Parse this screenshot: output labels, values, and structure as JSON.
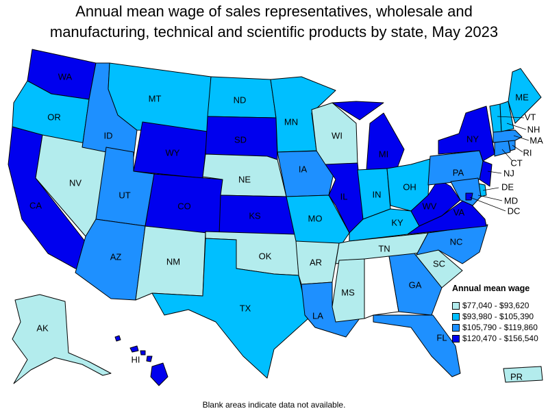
{
  "title_lines": [
    "Annual mean wage of sales representatives, wholesale and",
    "manufacturing, technical and scientific products by state, May 2023"
  ],
  "legend": {
    "title": "Annual mean wage",
    "bins": [
      {
        "label": "$77,040 - $93,620",
        "color": "#b3eced"
      },
      {
        "label": "$93,980 - $105,390",
        "color": "#00bfff"
      },
      {
        "label": "$105,790 - $119,860",
        "color": "#1e90ff"
      },
      {
        "label": "$120,470 - $156,540",
        "color": "#0000ee"
      }
    ]
  },
  "footnote": "Blank areas indicate data not available.",
  "blank_color": "#ffffff",
  "states": {
    "WA": 3,
    "OR": 1,
    "CA": 3,
    "NV": 0,
    "ID": 2,
    "MT": 1,
    "WY": 3,
    "UT": 2,
    "AZ": 2,
    "NM": 0,
    "CO": 3,
    "ND": 1,
    "SD": 3,
    "NE": 0,
    "KS": 3,
    "OK": 0,
    "TX": 1,
    "MN": 1,
    "IA": 2,
    "MO": 1,
    "AR": 0,
    "LA": 2,
    "WI": 0,
    "IL": 3,
    "MI": 3,
    "IN": 1,
    "OH": 1,
    "KY": 1,
    "TN": 0,
    "MS": 0,
    "AL": -1,
    "GA": 2,
    "FL": 2,
    "SC": 0,
    "NC": 2,
    "VA": 3,
    "WV": 3,
    "PA": 2,
    "NY": 3,
    "NJ": 3,
    "DE": 1,
    "MD": 2,
    "DC": 3,
    "CT": 2,
    "RI": 2,
    "MA": 2,
    "VT": 1,
    "NH": 1,
    "ME": 1,
    "AK": 0,
    "HI": 3,
    "PR": 0
  },
  "labels": {
    "WA": "WA",
    "OR": "OR",
    "CA": "CA",
    "NV": "NV",
    "ID": "ID",
    "MT": "MT",
    "WY": "WY",
    "UT": "UT",
    "AZ": "AZ",
    "NM": "NM",
    "CO": "CO",
    "ND": "ND",
    "SD": "SD",
    "NE": "NE",
    "KS": "KS",
    "OK": "OK",
    "TX": "TX",
    "MN": "MN",
    "IA": "IA",
    "MO": "MO",
    "AR": "AR",
    "LA": "LA",
    "WI": "WI",
    "IL": "IL",
    "MI": "MI",
    "IN": "IN",
    "OH": "OH",
    "KY": "KY",
    "TN": "TN",
    "MS": "MS",
    "GA": "GA",
    "FL": "FL",
    "SC": "SC",
    "NC": "NC",
    "VA": "VA",
    "WV": "WV",
    "PA": "PA",
    "NY": "NY",
    "NJ": "NJ",
    "DE": "DE",
    "MD": "MD",
    "DC": "DC",
    "CT": "CT",
    "RI": "RI",
    "MA": "MA",
    "VT": "VT",
    "NH": "NH",
    "ME": "ME",
    "AK": "AK",
    "HI": "HI",
    "PR": "PR"
  }
}
